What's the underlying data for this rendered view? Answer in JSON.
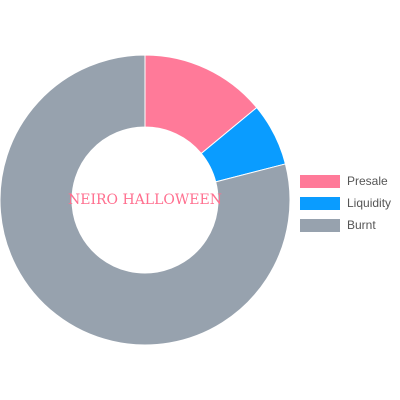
{
  "chart_data": {
    "type": "pie",
    "title": "",
    "center_text": "NEIRO HALLOWEEN",
    "categories": [
      "Presale",
      "Liquidity",
      "Burnt"
    ],
    "values": [
      14,
      7,
      79
    ],
    "colors": [
      "#ff7a99",
      "#0a9cff",
      "#97a2ae"
    ],
    "legend_position": "right"
  }
}
